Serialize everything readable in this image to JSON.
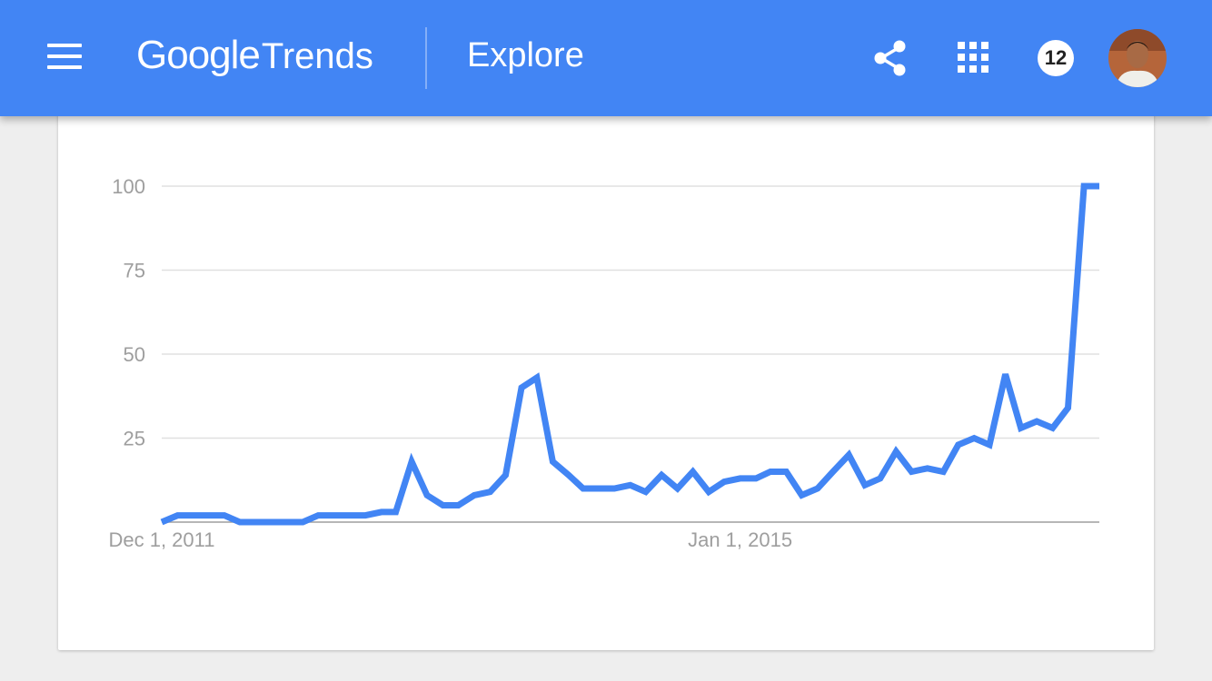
{
  "header": {
    "brand_google": "Google",
    "brand_trends": "Trends",
    "page_title": "Explore",
    "notification_count": "12"
  },
  "colors": {
    "header_bg": "#4285f4",
    "line": "#4285f4",
    "grid": "#e0e0e0",
    "axis": "#9e9e9e",
    "tick_text": "#9e9e9e"
  },
  "icons": [
    "menu-icon",
    "share-icon",
    "apps-icon",
    "avatar"
  ],
  "chart_data": {
    "type": "line",
    "title": "",
    "xlabel": "",
    "ylabel": "",
    "ylim": [
      0,
      100
    ],
    "yticks": [
      25,
      50,
      75,
      100
    ],
    "x_tick_labels": [
      {
        "label": "Dec 1, 2011",
        "date": "2011-12-01"
      },
      {
        "label": "Jan 1, 2015",
        "date": "2015-01-01"
      }
    ],
    "grid": true,
    "legend": "none",
    "x": [
      "2011-12-01",
      "2012-01-01",
      "2012-02-01",
      "2012-03-01",
      "2012-04-01",
      "2012-05-01",
      "2012-06-01",
      "2012-07-01",
      "2012-08-01",
      "2012-09-01",
      "2012-10-01",
      "2012-11-01",
      "2012-12-01",
      "2013-01-01",
      "2013-02-01",
      "2013-03-01",
      "2013-04-01",
      "2013-05-01",
      "2013-06-01",
      "2013-07-01",
      "2013-08-01",
      "2013-09-01",
      "2013-10-01",
      "2013-11-01",
      "2013-12-01",
      "2014-01-01",
      "2014-02-01",
      "2014-03-01",
      "2014-04-01",
      "2014-05-01",
      "2014-06-01",
      "2014-07-01",
      "2014-08-01",
      "2014-09-01",
      "2014-10-01",
      "2014-11-01",
      "2014-12-01",
      "2015-01-01",
      "2015-02-01",
      "2015-03-01",
      "2015-04-01",
      "2015-05-01",
      "2015-06-01",
      "2015-07-01",
      "2015-08-01",
      "2015-09-01",
      "2015-10-01",
      "2015-11-01",
      "2015-12-01",
      "2016-01-01",
      "2016-02-01",
      "2016-03-01",
      "2016-04-01",
      "2016-05-01",
      "2016-06-01",
      "2016-07-01",
      "2016-08-01",
      "2016-09-01",
      "2016-10-01",
      "2016-11-01",
      "2016-12-01"
    ],
    "values": [
      0,
      2,
      2,
      2,
      2,
      0,
      0,
      0,
      0,
      0,
      2,
      2,
      2,
      2,
      3,
      3,
      18,
      8,
      5,
      5,
      8,
      9,
      14,
      40,
      43,
      18,
      14,
      10,
      10,
      10,
      11,
      9,
      14,
      10,
      15,
      9,
      12,
      13,
      13,
      15,
      15,
      8,
      10,
      15,
      20,
      11,
      13,
      21,
      15,
      16,
      15,
      23,
      25,
      23,
      44,
      28,
      30,
      28,
      34,
      100,
      100
    ]
  }
}
